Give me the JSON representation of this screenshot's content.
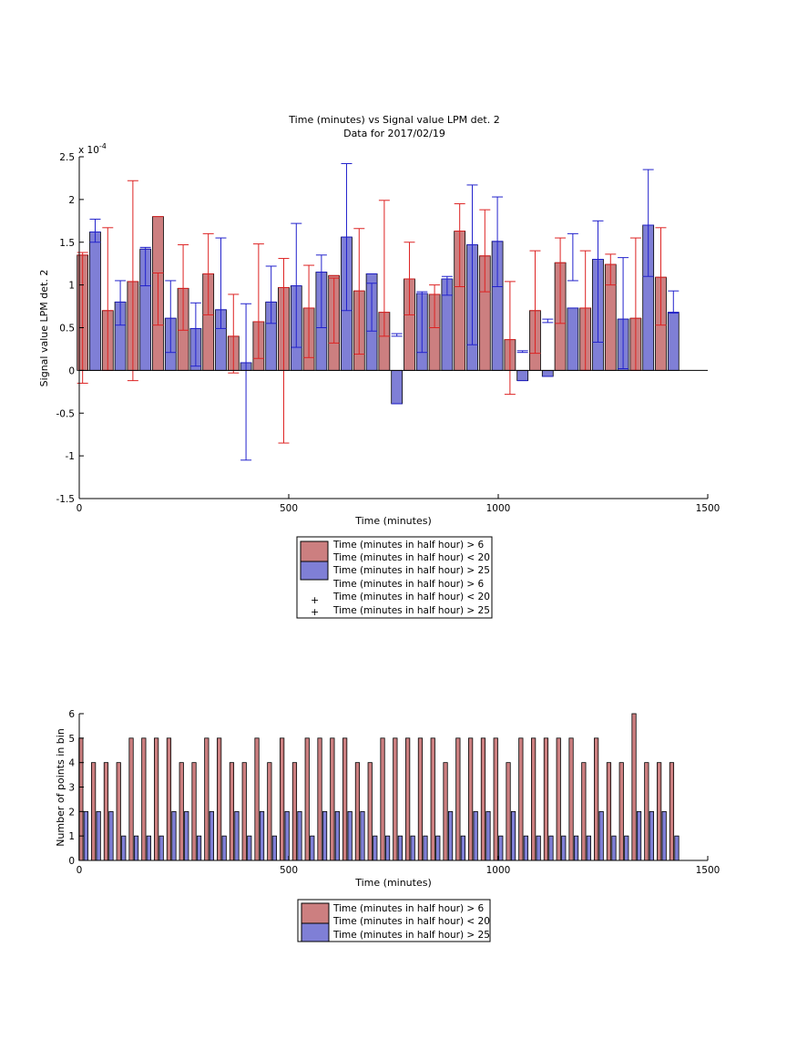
{
  "chart_data": [
    {
      "type": "bar",
      "title": "Time (minutes) vs Signal value LPM det. 2",
      "subtitle": "Data for 2017/02/19",
      "xlabel": "Time (minutes)",
      "ylabel": "Signal value LPM det. 2",
      "xlim": [
        0,
        1500
      ],
      "ylim": [
        -1.5,
        2.5
      ],
      "y_exponent_label": "x 10",
      "y_exponent_power": "-4",
      "xticks": [
        "0",
        "500",
        "1000",
        "1500"
      ],
      "yticks": [
        "-1.5",
        "-1",
        "-0.5",
        "0",
        "0.5",
        "1",
        "1.5",
        "2",
        "2.5"
      ],
      "grid": false,
      "legend": [
        "Time (minutes in half hour) > 6",
        "Time (minutes in half hour) < 20",
        "Time (minutes in half hour) > 25",
        "Time (minutes in half hour) > 6",
        "Time (minutes in half hour) < 20",
        "Time (minutes in half hour) > 25"
      ],
      "colors": {
        "series_a_fill": "#cc7f80",
        "series_b_fill": "#7f7fd6",
        "series_a_err": "#dd2222",
        "series_b_err": "#2222cc",
        "edge": "#000000"
      },
      "series": [
        {
          "x": [
            8,
            68,
            128,
            188,
            248,
            308,
            368,
            428,
            488,
            548,
            608,
            668,
            728,
            788,
            848,
            908,
            968,
            1028,
            1088,
            1148,
            1208,
            1268,
            1328,
            1388
          ],
          "values": [
            1.35,
            0.7,
            1.04,
            1.8,
            0.96,
            1.13,
            0.4,
            0.57,
            0.97,
            0.73,
            1.11,
            0.93,
            0.68,
            1.07,
            0.89,
            1.63,
            1.34,
            0.36,
            0.7,
            1.26,
            0.73,
            1.24,
            0.61,
            1.09
          ],
          "err_low": [
            -0.15,
            0.0,
            -0.12,
            0.53,
            0.47,
            0.65,
            -0.03,
            0.14,
            -0.85,
            0.15,
            0.32,
            0.19,
            0.4,
            0.65,
            0.5,
            0.98,
            0.92,
            -0.28,
            0.2,
            0.55,
            0.0,
            1.0,
            0.0,
            0.53
          ],
          "err_high": [
            1.38,
            1.67,
            2.22,
            1.14,
            1.47,
            1.6,
            0.89,
            1.48,
            1.31,
            1.23,
            1.08,
            1.66,
            1.99,
            1.5,
            1.0,
            1.95,
            1.88,
            1.04,
            1.4,
            1.55,
            1.4,
            1.36,
            1.55,
            1.67
          ]
        },
        {
          "x": [
            38,
            98,
            158,
            218,
            278,
            338,
            398,
            458,
            518,
            578,
            638,
            698,
            758,
            818,
            878,
            938,
            998,
            1058,
            1118,
            1178,
            1238,
            1298,
            1358,
            1418
          ],
          "values": [
            1.62,
            0.8,
            1.42,
            0.61,
            0.49,
            0.71,
            0.09,
            0.8,
            0.99,
            1.15,
            1.56,
            1.13,
            -0.39,
            0.9,
            1.07,
            1.47,
            1.51,
            -0.12,
            -0.07,
            0.73,
            1.3,
            0.6,
            1.7,
            0.68
          ],
          "err_low": [
            1.5,
            0.53,
            0.99,
            0.21,
            0.05,
            0.49,
            -1.05,
            0.55,
            0.27,
            0.5,
            0.7,
            0.46,
            0.43,
            0.21,
            0.88,
            0.3,
            0.98,
            0.23,
            0.56,
            1.05,
            0.33,
            0.02,
            1.1,
            0.93
          ],
          "err_high": [
            1.77,
            1.05,
            1.44,
            1.05,
            0.79,
            1.55,
            0.78,
            1.22,
            1.72,
            1.35,
            2.42,
            1.02,
            0.4,
            0.92,
            1.1,
            2.17,
            2.03,
            0.21,
            0.6,
            1.6,
            1.75,
            1.32,
            2.35,
            0.67
          ]
        }
      ]
    },
    {
      "type": "bar",
      "title": "",
      "xlabel": "Time (minutes)",
      "ylabel": "Number of points in bin",
      "xlim": [
        0,
        1500
      ],
      "ylim": [
        0,
        6
      ],
      "xticks": [
        "0",
        "500",
        "1500"
      ],
      "xticks_all": [
        "0",
        "500",
        "1000",
        "1500"
      ],
      "yticks": [
        "0",
        "1",
        "2",
        "3",
        "4",
        "5",
        "6"
      ],
      "grid": false,
      "legend": [
        "Time (minutes in half hour) > 6",
        "Time (minutes in half hour) < 20",
        "Time (minutes in half hour) > 25"
      ],
      "series": [
        {
          "x": [
            4,
            34,
            64,
            94,
            124,
            154,
            184,
            214,
            244,
            274,
            304,
            334,
            364,
            394,
            424,
            454,
            484,
            514,
            544,
            574,
            604,
            634,
            664,
            694,
            724,
            754,
            784,
            814,
            844,
            874,
            904,
            934,
            964,
            994,
            1024,
            1054,
            1084,
            1114,
            1144,
            1174,
            1204,
            1234,
            1264,
            1294,
            1324,
            1354,
            1384,
            1414
          ],
          "values": [
            5,
            4,
            4,
            4,
            5,
            5,
            5,
            5,
            4,
            4,
            5,
            5,
            4,
            4,
            5,
            4,
            5,
            4,
            5,
            5,
            5,
            5,
            4,
            4,
            5,
            5,
            5,
            5,
            5,
            4,
            5,
            5,
            5,
            5,
            4,
            5,
            5,
            5,
            5,
            5,
            4,
            5,
            4,
            4,
            6,
            4,
            4,
            4
          ]
        },
        {
          "x": [
            16,
            46,
            76,
            106,
            136,
            166,
            196,
            226,
            256,
            286,
            316,
            346,
            376,
            406,
            436,
            466,
            496,
            526,
            556,
            586,
            616,
            646,
            676,
            706,
            736,
            766,
            796,
            826,
            856,
            886,
            916,
            946,
            976,
            1006,
            1036,
            1066,
            1096,
            1126,
            1156,
            1186,
            1216,
            1246,
            1276,
            1306,
            1336,
            1366,
            1396,
            1426
          ],
          "values": [
            2,
            2,
            2,
            1,
            1,
            1,
            1,
            2,
            2,
            1,
            2,
            1,
            2,
            1,
            2,
            1,
            2,
            2,
            1,
            2,
            2,
            2,
            2,
            1,
            1,
            1,
            1,
            1,
            1,
            2,
            1,
            2,
            2,
            1,
            2,
            1,
            1,
            1,
            1,
            1,
            1,
            2,
            1,
            1,
            2,
            2,
            2,
            1
          ]
        }
      ]
    }
  ]
}
